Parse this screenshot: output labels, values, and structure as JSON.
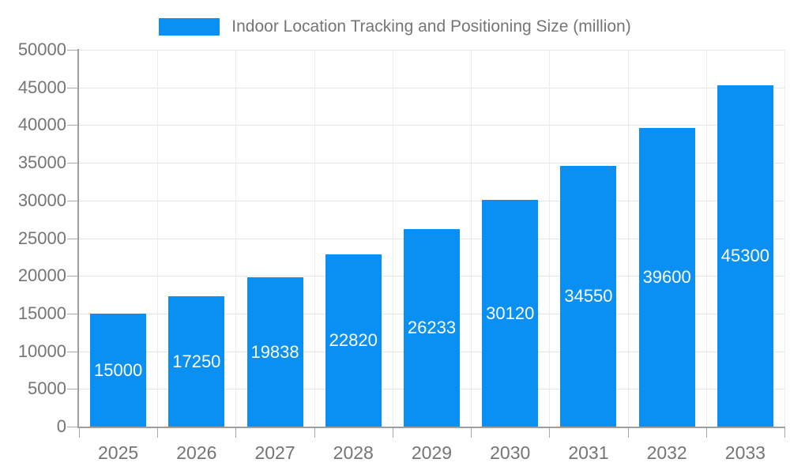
{
  "legend": {
    "label": "Indoor Location Tracking and Positioning Size (million)"
  },
  "colors": {
    "bar": "#0a90f2",
    "bar_label": "#ffffff",
    "axis_text": "#757575",
    "grid_horizontal": "#e6e6e6",
    "grid_vertical": "#ececec",
    "axis_line": "#9e9e9e",
    "tick": "#a8a8a8"
  },
  "chart_data": {
    "type": "bar",
    "title": "Indoor Location Tracking and Positioning Size (million)",
    "categories": [
      "2025",
      "2026",
      "2027",
      "2028",
      "2029",
      "2030",
      "2031",
      "2032",
      "2033"
    ],
    "values": [
      15000,
      17250,
      19838,
      22820,
      26233,
      30120,
      34550,
      39600,
      45300
    ],
    "yticks": [
      0,
      5000,
      10000,
      15000,
      20000,
      25000,
      30000,
      35000,
      40000,
      45000,
      50000
    ],
    "ylim": [
      0,
      50000
    ],
    "xlabel": "",
    "ylabel": "",
    "grid": true,
    "legend_position": "top",
    "value_labels": "inside-center"
  }
}
